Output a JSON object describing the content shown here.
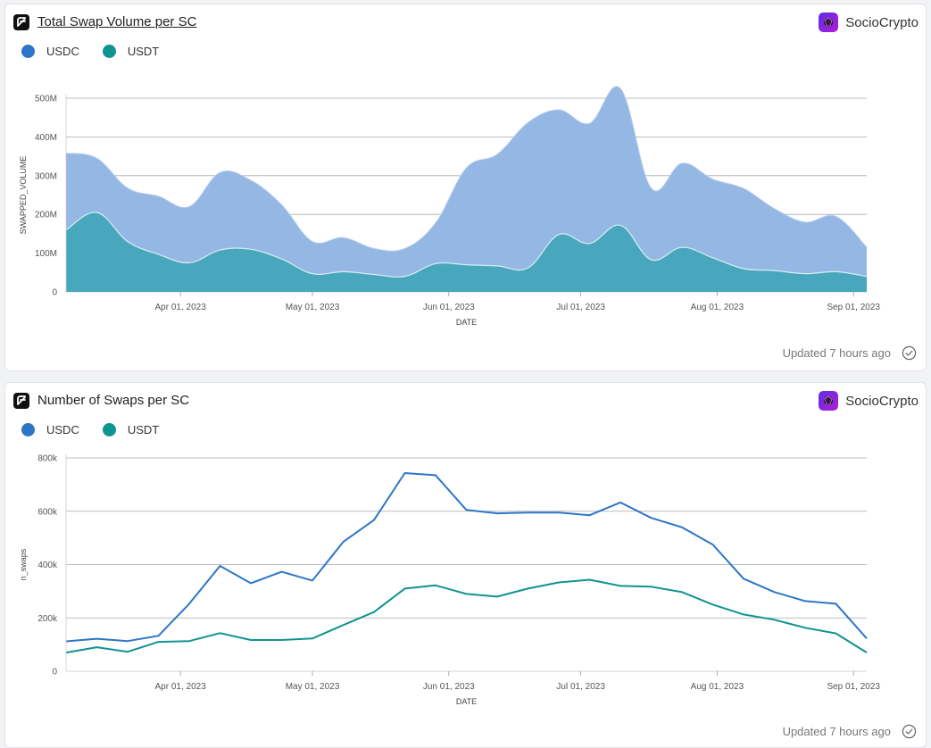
{
  "brand": {
    "name": "SocioCrypto",
    "colors": {
      "usdc": "#2d76c7",
      "usdt": "#0f9490",
      "usdc_fill": "#94b7e3",
      "usdt_fill": "#48a7bd",
      "grid": "#a9a9a9"
    }
  },
  "footer": {
    "updated": "Updated 7 hours ago"
  },
  "chart_data": [
    {
      "type": "area",
      "title": "Total Swap Volume per SC",
      "xlabel": "DATE",
      "ylabel": "SWAPPED_VOLUME",
      "ylim": [
        0,
        500000000
      ],
      "yticks": [
        0,
        100000000,
        200000000,
        300000000,
        400000000,
        500000000
      ],
      "ytick_labels": [
        "0",
        "100M",
        "200M",
        "300M",
        "400M",
        "500M"
      ],
      "xlim": [
        "2023-03-06",
        "2023-09-04"
      ],
      "xticks": [
        "2023-04-01",
        "2023-05-01",
        "2023-06-01",
        "2023-07-01",
        "2023-08-01",
        "2023-09-01"
      ],
      "xtick_labels": [
        "Apr 01, 2023",
        "May 01, 2023",
        "Jun 01, 2023",
        "Jul 01, 2023",
        "Aug 01, 2023",
        "Sep 01, 2023"
      ],
      "stacked": true,
      "legend": [
        "USDC",
        "USDT"
      ],
      "x": [
        "2023-03-06",
        "2023-03-13",
        "2023-03-20",
        "2023-03-27",
        "2023-04-03",
        "2023-04-10",
        "2023-04-17",
        "2023-04-24",
        "2023-05-01",
        "2023-05-08",
        "2023-05-15",
        "2023-05-22",
        "2023-05-29",
        "2023-06-05",
        "2023-06-12",
        "2023-06-19",
        "2023-06-26",
        "2023-07-03",
        "2023-07-10",
        "2023-07-17",
        "2023-07-24",
        "2023-07-31",
        "2023-08-07",
        "2023-08-14",
        "2023-08-21",
        "2023-08-28",
        "2023-09-04"
      ],
      "series": [
        {
          "name": "USDT",
          "values": [
            160000000,
            205000000,
            130000000,
            97000000,
            75000000,
            108000000,
            110000000,
            85000000,
            47000000,
            52000000,
            45000000,
            40000000,
            73000000,
            70000000,
            67000000,
            62000000,
            148000000,
            125000000,
            172000000,
            83000000,
            115000000,
            88000000,
            60000000,
            55000000,
            47000000,
            52000000,
            40000000
          ]
        },
        {
          "name": "USDC",
          "values": [
            198000000,
            140000000,
            138000000,
            150000000,
            145000000,
            200000000,
            178000000,
            140000000,
            83000000,
            88000000,
            67000000,
            72000000,
            105000000,
            250000000,
            288000000,
            375000000,
            322000000,
            310000000,
            353000000,
            185000000,
            217000000,
            203000000,
            207000000,
            160000000,
            133000000,
            143000000,
            75000000
          ]
        }
      ]
    },
    {
      "type": "line",
      "title": "Number of Swaps per SC",
      "xlabel": "DATE",
      "ylabel": "n_swaps",
      "ylim": [
        0,
        800000
      ],
      "yticks": [
        0,
        200000,
        400000,
        600000,
        800000
      ],
      "ytick_labels": [
        "0",
        "200k",
        "400k",
        "600k",
        "800k"
      ],
      "xlim": [
        "2023-03-06",
        "2023-09-04"
      ],
      "xticks": [
        "2023-04-01",
        "2023-05-01",
        "2023-06-01",
        "2023-07-01",
        "2023-08-01",
        "2023-09-01"
      ],
      "xtick_labels": [
        "Apr 01, 2023",
        "May 01, 2023",
        "Jun 01, 2023",
        "Jul 01, 2023",
        "Aug 01, 2023",
        "Sep 01, 2023"
      ],
      "legend": [
        "USDC",
        "USDT"
      ],
      "x": [
        "2023-03-06",
        "2023-03-13",
        "2023-03-20",
        "2023-03-27",
        "2023-04-03",
        "2023-04-10",
        "2023-04-17",
        "2023-04-24",
        "2023-05-01",
        "2023-05-08",
        "2023-05-15",
        "2023-05-22",
        "2023-05-29",
        "2023-06-05",
        "2023-06-12",
        "2023-06-19",
        "2023-06-26",
        "2023-07-03",
        "2023-07-10",
        "2023-07-17",
        "2023-07-24",
        "2023-07-31",
        "2023-08-07",
        "2023-08-14",
        "2023-08-21",
        "2023-08-28",
        "2023-09-04"
      ],
      "series": [
        {
          "name": "USDC",
          "values": [
            112000,
            122000,
            113000,
            133000,
            253000,
            395000,
            330000,
            373000,
            340000,
            485000,
            567000,
            743000,
            735000,
            605000,
            592000,
            595000,
            595000,
            585000,
            633000,
            575000,
            540000,
            475000,
            347000,
            297000,
            263000,
            253000,
            123000
          ]
        },
        {
          "name": "USDT",
          "values": [
            70000,
            90000,
            73000,
            110000,
            113000,
            143000,
            117000,
            117000,
            123000,
            173000,
            222000,
            310000,
            322000,
            290000,
            280000,
            310000,
            333000,
            343000,
            320000,
            317000,
            297000,
            250000,
            213000,
            193000,
            163000,
            142000,
            70000
          ]
        }
      ]
    }
  ]
}
